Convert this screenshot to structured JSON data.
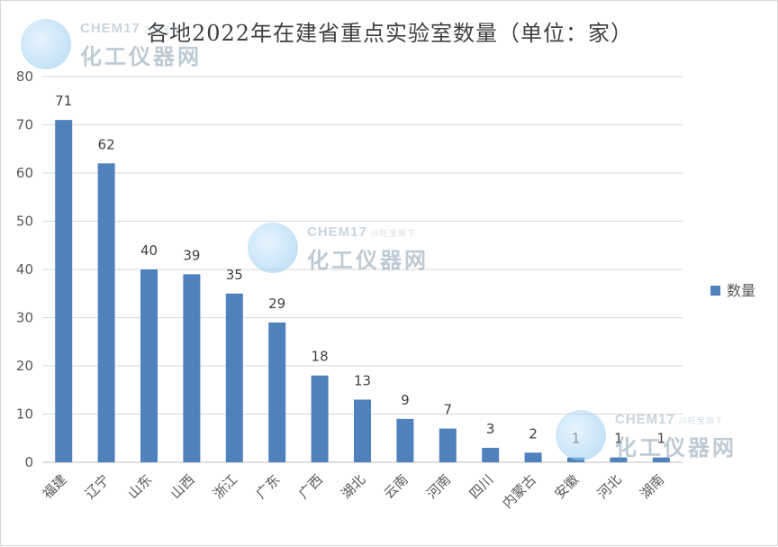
{
  "chart_data": {
    "type": "bar",
    "title": "各地2022年在建省重点实验室数量（单位：家）",
    "categories": [
      "福建",
      "辽宁",
      "山东",
      "山西",
      "浙江",
      "广东",
      "广西",
      "湖北",
      "云南",
      "河南",
      "四川",
      "内蒙古",
      "安徽",
      "河北",
      "湖南"
    ],
    "series": [
      {
        "name": "数量",
        "values": [
          71,
          62,
          40,
          39,
          35,
          29,
          18,
          13,
          9,
          7,
          3,
          2,
          1,
          1,
          1
        ],
        "color": "#4f81bd"
      }
    ],
    "ylim": [
      0,
      80
    ],
    "yticks": [
      0,
      10,
      20,
      30,
      40,
      50,
      60,
      70,
      80
    ],
    "grid": true,
    "legend_position": "right",
    "xlabel": "",
    "ylabel": ""
  },
  "watermark": {
    "brand_top": "CHEM17",
    "brand_sub": "兴旺宝旗下",
    "brand_main": "化工仪器网",
    "icon": "chem17-logo-icon"
  }
}
